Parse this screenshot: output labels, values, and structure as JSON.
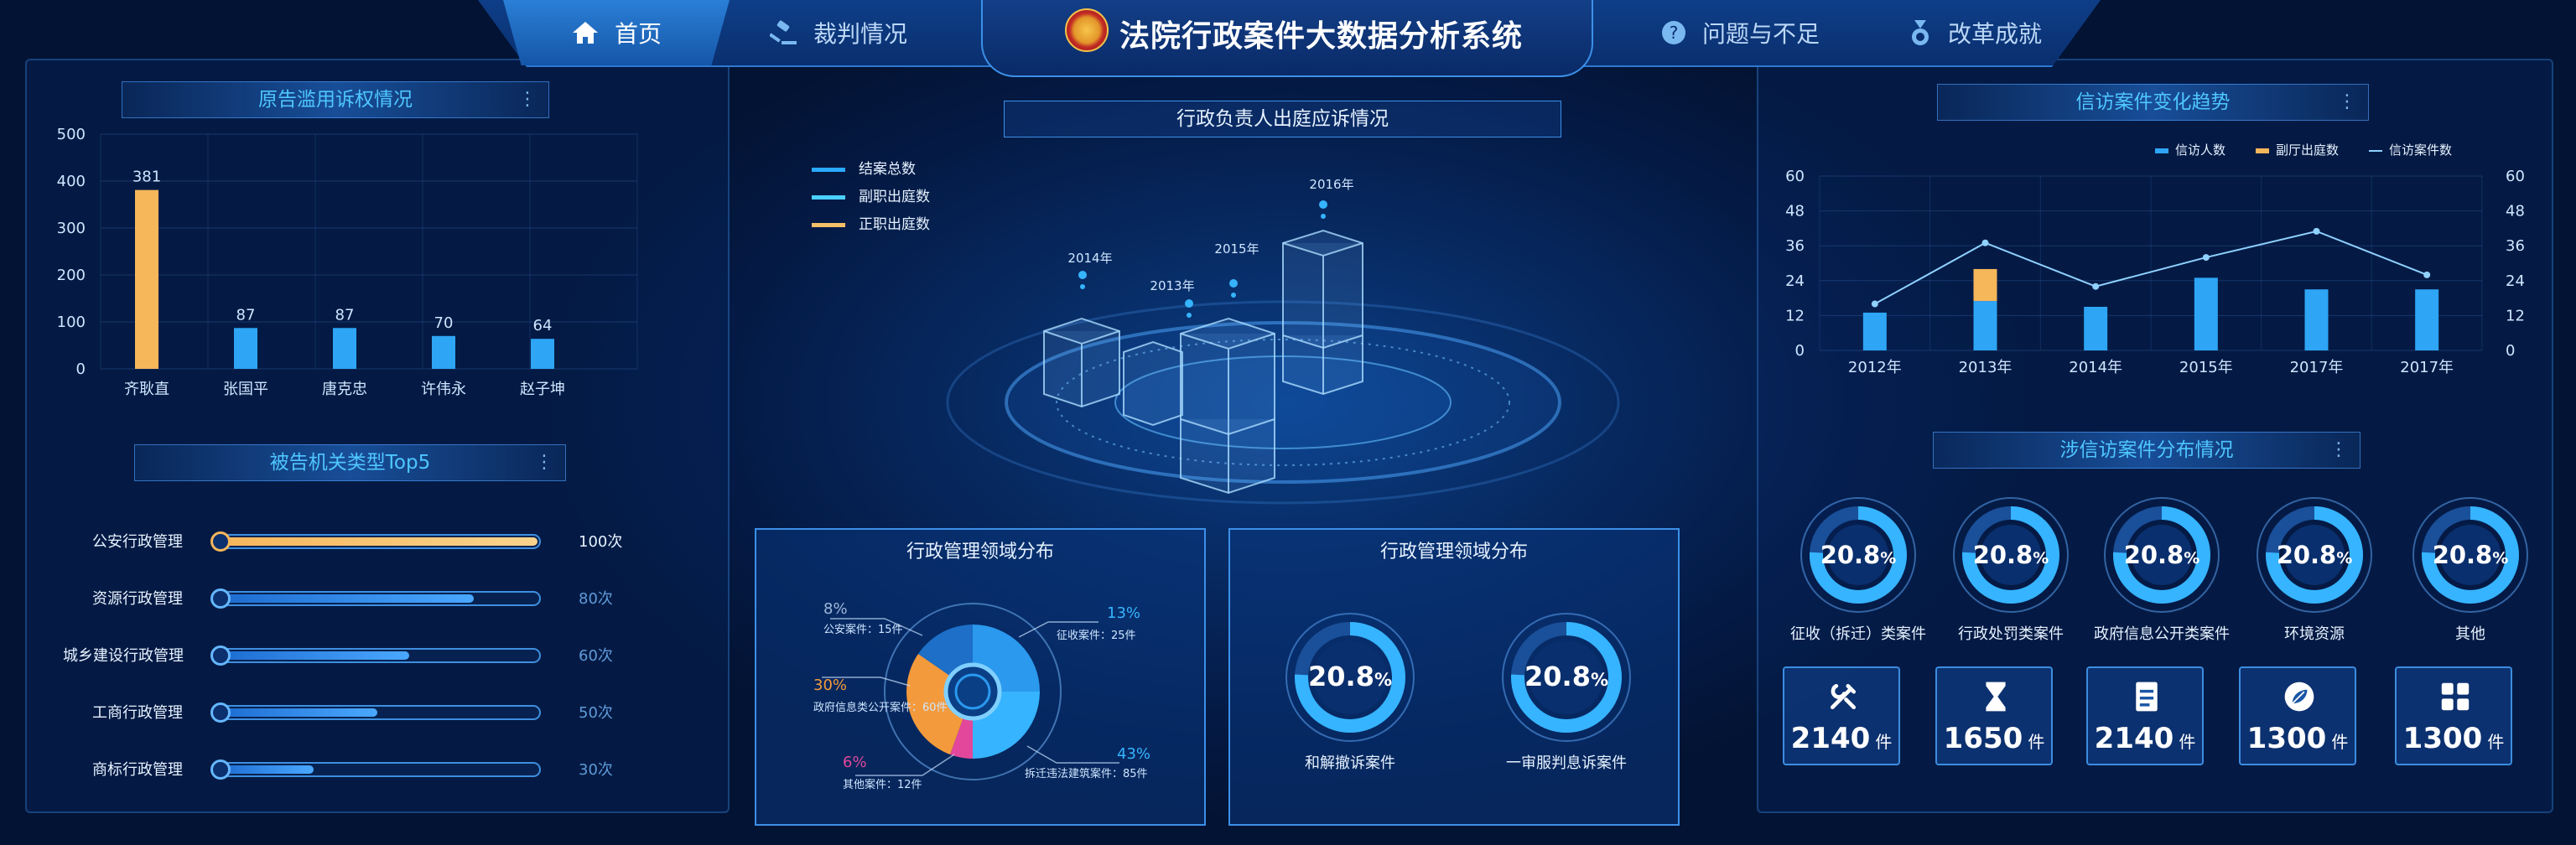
{
  "header": {
    "title": "法院行政案件大数据分析系统",
    "nav": [
      {
        "label": "首页",
        "icon": "home-icon"
      },
      {
        "label": "裁判情况",
        "icon": "gavel-icon"
      },
      {
        "label": "问题与不足",
        "icon": "question-icon"
      },
      {
        "label": "改革成就",
        "icon": "medal-icon"
      }
    ]
  },
  "left_top": {
    "title": "原告滥用诉权情况",
    "chart_data": {
      "type": "bar",
      "categories": [
        "齐耿直",
        "张国平",
        "唐克忠",
        "许伟永",
        "赵子坤"
      ],
      "values": [
        381,
        87,
        87,
        70,
        64
      ],
      "ylim": [
        0,
        500
      ],
      "yticks": [
        0,
        100,
        200,
        300,
        400,
        500
      ]
    }
  },
  "left_bottom": {
    "title": "被告机关类型Top5",
    "items": [
      {
        "label": "公安行政管理",
        "value": "100次",
        "fraction": 1.0,
        "highlight": true
      },
      {
        "label": "资源行政管理",
        "value": "80次",
        "fraction": 0.8
      },
      {
        "label": "城乡建设行政管理",
        "value": "60次",
        "fraction": 0.6
      },
      {
        "label": "工商行政管理",
        "value": "50次",
        "fraction": 0.5
      },
      {
        "label": "商标行政管理",
        "value": "30次",
        "fraction": 0.3
      }
    ]
  },
  "center_top": {
    "title": "行政负责人出庭应诉情况",
    "legend": [
      "结案总数",
      "副职出庭数",
      "正职出庭数"
    ],
    "years": [
      "2014年",
      "2013年",
      "2015年",
      "2016年"
    ]
  },
  "center_pie": {
    "title": "行政管理领域分布",
    "chart_data": {
      "type": "pie",
      "slices": [
        {
          "pct": "8%",
          "label": "公安案件：15件"
        },
        {
          "pct": "13%",
          "label": "征收案件：25件"
        },
        {
          "pct": "30%",
          "label": "政府信息类公开案件：60件"
        },
        {
          "pct": "6%",
          "label": "其他案件：12件"
        },
        {
          "pct": "43%",
          "label": "拆迁违法建筑案件：85件"
        }
      ]
    }
  },
  "center_rings": {
    "title": "行政管理领域分布",
    "items": [
      {
        "value": "20.8",
        "unit": "%",
        "fraction": 0.208,
        "label": "和解撤诉案件"
      },
      {
        "value": "20.8",
        "unit": "%",
        "fraction": 0.208,
        "label": "一审服判息诉案件"
      }
    ]
  },
  "right_top": {
    "title": "信访案件变化趋势",
    "legend": [
      "信访人数",
      "副厅出庭数",
      "信访案件数"
    ],
    "chart_data": {
      "type": "bar",
      "categories": [
        "2012年",
        "2013年",
        "2014年",
        "2015年",
        "2017年",
        "2017年"
      ],
      "series": [
        {
          "name": "信访人数",
          "values": [
            13,
            17,
            15,
            25,
            21,
            21
          ]
        },
        {
          "name": "副厅出庭数",
          "values": [
            0,
            11,
            0,
            0,
            0,
            0
          ]
        },
        {
          "name": "信访案件数",
          "values": [
            16,
            37,
            22,
            32,
            41,
            26
          ]
        }
      ],
      "ylim": [
        0,
        60
      ],
      "yticks": [
        0,
        12,
        24,
        36,
        48,
        60
      ]
    }
  },
  "right_bottom": {
    "title": "涉信访案件分布情况",
    "items": [
      {
        "value": "20.8",
        "unit": "%",
        "fraction": 0.208,
        "label": "征收（拆迁）类案件",
        "count": "2140",
        "count_unit": "件",
        "icon": "tools-icon"
      },
      {
        "value": "20.8",
        "unit": "%",
        "fraction": 0.208,
        "label": "行政处罚类案件",
        "count": "1650",
        "count_unit": "件",
        "icon": "hourglass-icon"
      },
      {
        "value": "20.8",
        "unit": "%",
        "fraction": 0.208,
        "label": "政府信息公开类案件",
        "count": "2140",
        "count_unit": "件",
        "icon": "document-icon"
      },
      {
        "value": "20.8",
        "unit": "%",
        "fraction": 0.208,
        "label": "环境资源",
        "count": "1300",
        "count_unit": "件",
        "icon": "leaf-icon"
      },
      {
        "value": "20.8",
        "unit": "%",
        "fraction": 0.208,
        "label": "其他",
        "count": "1300",
        "count_unit": "件",
        "icon": "grid-icon"
      }
    ]
  },
  "colors": {
    "accent": "#4fc6ff",
    "bar_blue": "#2ea5f5",
    "bar_orange": "#f6b65a",
    "pie_orange": "#f39a3c",
    "pie_pink": "#e2479b"
  }
}
